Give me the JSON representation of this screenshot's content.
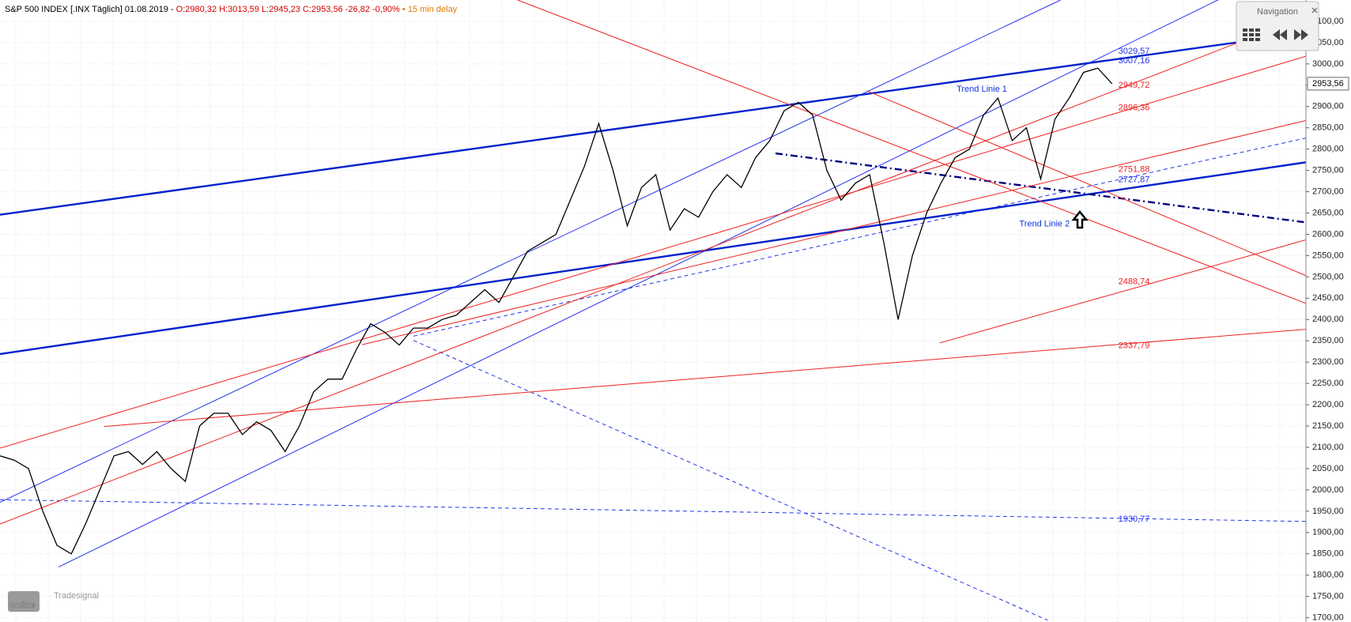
{
  "chart_data": {
    "type": "line",
    "title": "S&P 500 INDEX [.INX Täglich] 01.08.2019 -",
    "subtitle": "O:2980,32 H:3013,59 L:2945,23 C:2953,56 -26,82 -0,90%",
    "note": "• 15 min delay",
    "navigation_title": "Navigation",
    "brand": "Tradesignal",
    "brand_main": "online",
    "ylim": [
      1690,
      3150
    ],
    "yticks": [
      {
        "value": 1700,
        "label": "1700,00"
      },
      {
        "value": 1750,
        "label": "1750,00"
      },
      {
        "value": 1800,
        "label": "1800,00"
      },
      {
        "value": 1850,
        "label": "1850,00"
      },
      {
        "value": 1900,
        "label": "1900,00"
      },
      {
        "value": 1950,
        "label": "1950,00"
      },
      {
        "value": 2000,
        "label": "2000,00"
      },
      {
        "value": 2050,
        "label": "2050,00"
      },
      {
        "value": 2100,
        "label": "2100,00"
      },
      {
        "value": 2150,
        "label": "2150,00"
      },
      {
        "value": 2200,
        "label": "2200,00"
      },
      {
        "value": 2250,
        "label": "2250,00"
      },
      {
        "value": 2300,
        "label": "2300,00"
      },
      {
        "value": 2350,
        "label": "2350,00"
      },
      {
        "value": 2400,
        "label": "2400,00"
      },
      {
        "value": 2450,
        "label": "2450,00"
      },
      {
        "value": 2500,
        "label": "2500,00"
      },
      {
        "value": 2550,
        "label": "2550,00"
      },
      {
        "value": 2600,
        "label": "2600,00"
      },
      {
        "value": 2650,
        "label": "2650,00"
      },
      {
        "value": 2700,
        "label": "2700,00"
      },
      {
        "value": 2750,
        "label": "2750,00"
      },
      {
        "value": 2800,
        "label": "2800,00"
      },
      {
        "value": 2850,
        "label": "2850,00"
      },
      {
        "value": 2900,
        "label": "2900,00"
      },
      {
        "value": 2950,
        "label": "2950,00"
      },
      {
        "value": 3000,
        "label": "3000,00"
      },
      {
        "value": 3050,
        "label": "3050,00"
      },
      {
        "value": 3100,
        "label": "3100,00"
      }
    ],
    "grid": true,
    "series": [
      {
        "color": "#000000",
        "values": [
          2080,
          2070,
          2050,
          1950,
          1870,
          1850,
          1920,
          2000,
          2080,
          2090,
          2060,
          2090,
          2050,
          2020,
          2150,
          2180,
          2180,
          2130,
          2160,
          2140,
          2090,
          2150,
          2230,
          2260,
          2260,
          2330,
          2390,
          2370,
          2340,
          2380,
          2380,
          2400,
          2410,
          2440,
          2470,
          2440,
          2500,
          2560,
          2580,
          2600,
          2680,
          2760,
          2860,
          2750,
          2620,
          2710,
          2740,
          2610,
          2660,
          2640,
          2700,
          2740,
          2710,
          2780,
          2820,
          2890,
          2910,
          2880,
          2750,
          2680,
          2720,
          2740,
          2580,
          2400,
          2550,
          2650,
          2720,
          2780,
          2800,
          2880,
          2920,
          2820,
          2850,
          2730,
          2870,
          2920,
          2980,
          2990,
          2953.56
        ]
      }
    ],
    "last_price": {
      "value": 2953.56,
      "label": "2953,56"
    },
    "lines": [
      {
        "color": "#0022cc",
        "bold": true,
        "style": "solid",
        "from": [
          0,
          2646
        ],
        "to": [
          91.6,
          3073
        ]
      },
      {
        "color": "#0022cc",
        "bold": true,
        "style": "solid",
        "from": [
          0,
          2319
        ],
        "to": [
          91.6,
          2769
        ]
      },
      {
        "color": "#2233ee",
        "bold": false,
        "style": "solid",
        "from": [
          0,
          1971
        ],
        "to": [
          74.4,
          3150
        ]
      },
      {
        "color": "#2233ee",
        "bold": false,
        "style": "solid",
        "from": [
          4.1,
          1819
        ],
        "to": [
          91.6,
          3251
        ]
      },
      {
        "color": "#2233ee",
        "bold": false,
        "style": "dashed",
        "from": [
          0,
          1977
        ],
        "to": [
          91.6,
          1926
        ]
      },
      {
        "color": "#2233ee",
        "bold": false,
        "style": "dashed",
        "from": [
          29,
          2361
        ],
        "to": [
          91.6,
          2826
        ]
      },
      {
        "color": "#2233ee",
        "bold": false,
        "style": "dashed",
        "from": [
          29,
          2351
        ],
        "to": [
          73.5,
          1694
        ]
      },
      {
        "color": "#000080",
        "bold": true,
        "style": "dashdot",
        "from": [
          54.4,
          2790
        ],
        "to": [
          91.6,
          2628
        ]
      },
      {
        "color": "#ee2222",
        "bold": false,
        "style": "solid",
        "from": [
          36.3,
          3150
        ],
        "to": [
          91.6,
          2438
        ]
      },
      {
        "color": "#ee2222",
        "bold": false,
        "style": "solid",
        "from": [
          0,
          2098
        ],
        "to": [
          91.6,
          3018
        ]
      },
      {
        "color": "#ee2222",
        "bold": false,
        "style": "solid",
        "from": [
          0,
          1920
        ],
        "to": [
          88.3,
          3069
        ]
      },
      {
        "color": "#ee2222",
        "bold": false,
        "style": "solid",
        "from": [
          65.9,
          2345
        ],
        "to": [
          91.6,
          2587
        ]
      },
      {
        "color": "#ee2222",
        "bold": false,
        "style": "solid",
        "from": [
          7.3,
          2149
        ],
        "to": [
          91.6,
          2377
        ]
      },
      {
        "color": "#ee2222",
        "bold": false,
        "style": "solid",
        "from": [
          60.8,
          2937
        ],
        "to": [
          91.6,
          2503
        ]
      },
      {
        "color": "#ee2222",
        "bold": false,
        "style": "solid",
        "from": [
          25.4,
          2341
        ],
        "to": [
          91.6,
          2867
        ]
      }
    ],
    "price_labels": [
      {
        "value": 3029.57,
        "label": "3029,57",
        "color": "#2233ee"
      },
      {
        "value": 3007.16,
        "label": "3007,16",
        "color": "#2233ee"
      },
      {
        "value": 2949.72,
        "label": "2949,72",
        "color": "#ee2222"
      },
      {
        "value": 2896.36,
        "label": "2896,36",
        "color": "#ee2222"
      },
      {
        "value": 2751.88,
        "label": "2751,88",
        "color": "#ee2222"
      },
      {
        "value": 2727.87,
        "label": "2727,87",
        "color": "#2233ee"
      },
      {
        "value": 2488.74,
        "label": "2488,74",
        "color": "#ee2222"
      },
      {
        "value": 2337.79,
        "label": "2337,79",
        "color": "#ee2222"
      },
      {
        "value": 1930.77,
        "label": "1930,77",
        "color": "#2233ee"
      }
    ],
    "annotations": [
      {
        "text": "Trend Linie 1",
        "x": 67.1,
        "y": 2940
      },
      {
        "text": "Trend Linie 2",
        "x": 71.5,
        "y": 2624
      }
    ]
  }
}
